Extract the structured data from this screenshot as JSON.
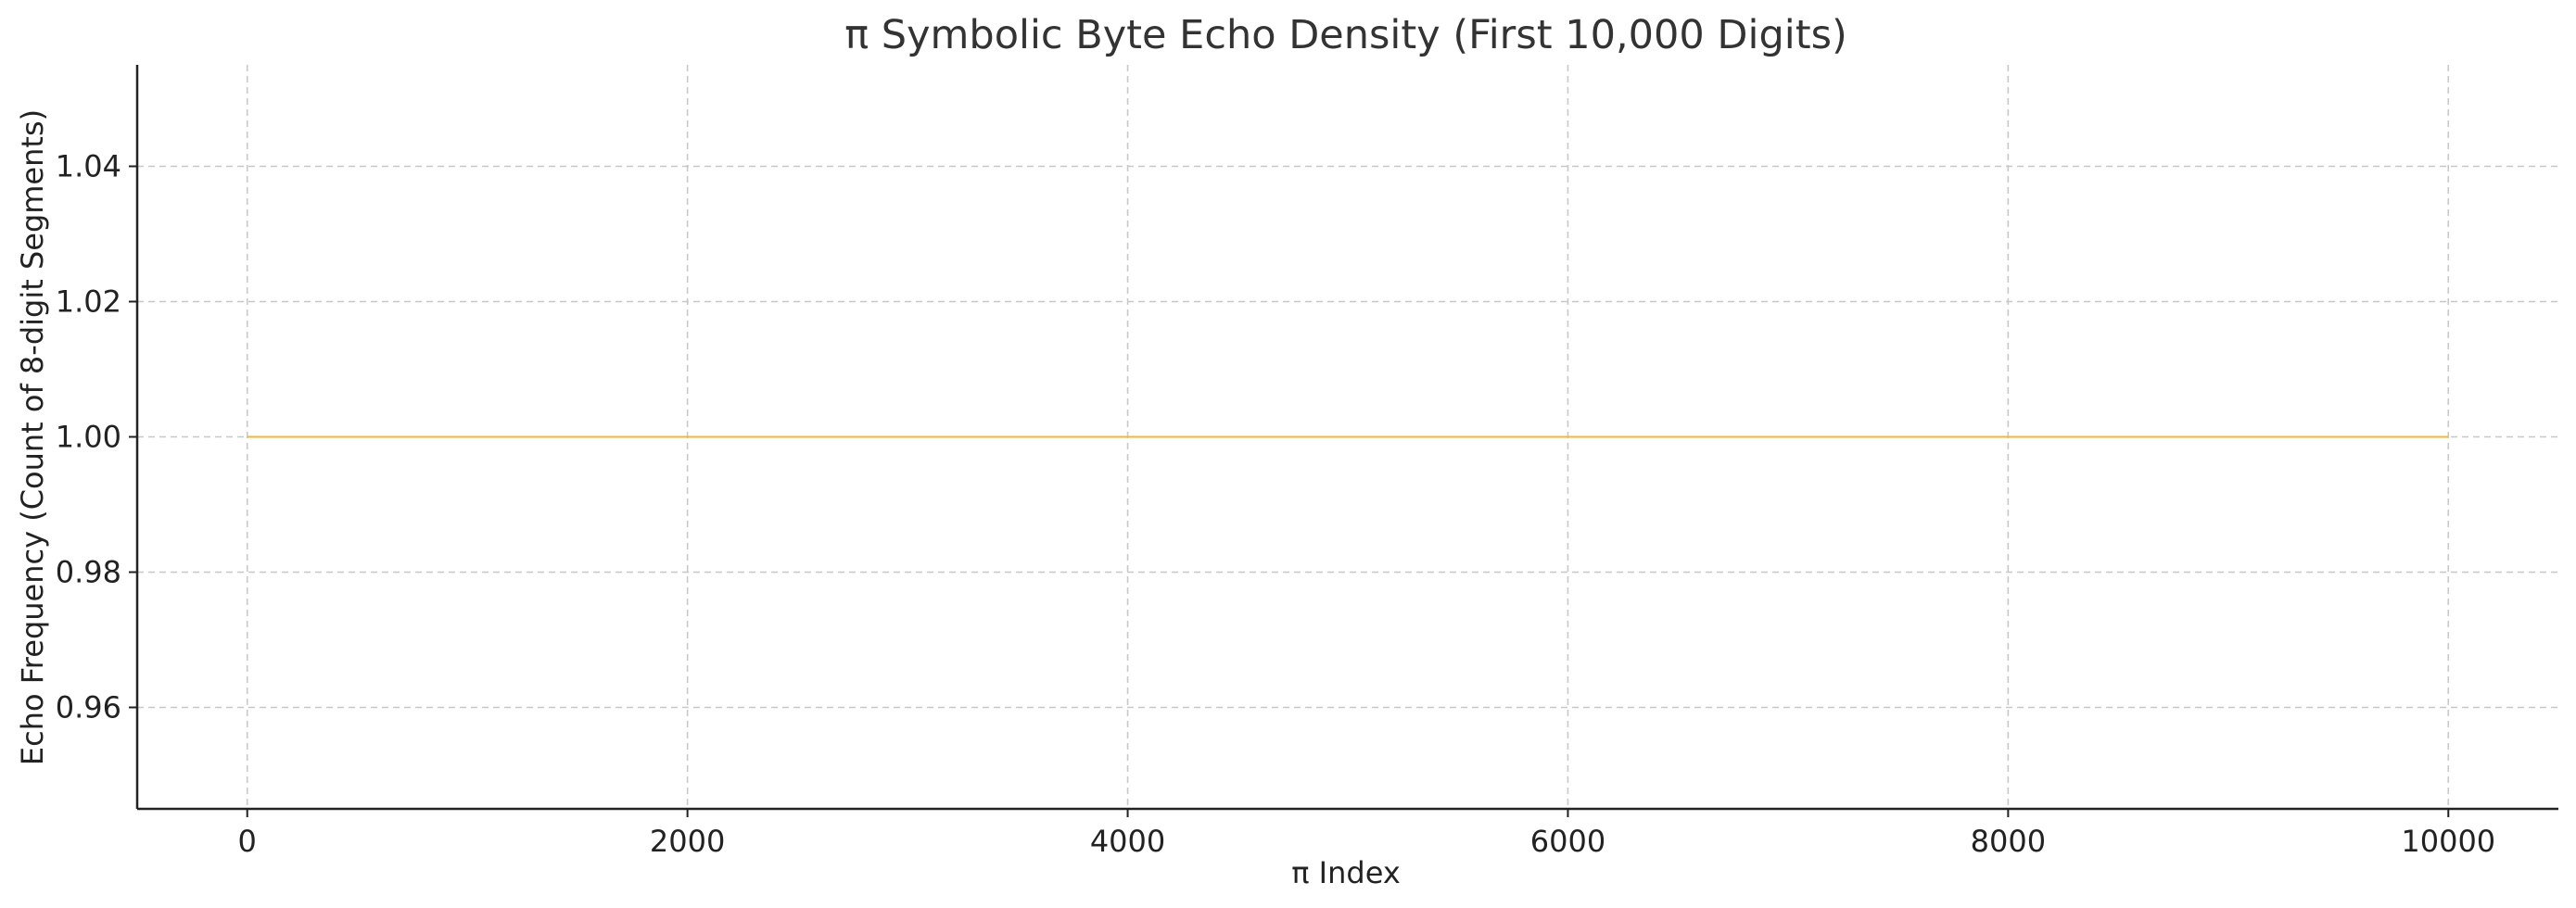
{
  "chart_data": {
    "type": "line",
    "title": "π Symbolic Byte Echo Density (First 10,000 Digits)",
    "xlabel": "π Index",
    "ylabel": "Echo Frequency (Count of 8-digit Segments)",
    "xlim": [
      -500,
      10500
    ],
    "ylim": [
      0.945,
      1.055
    ],
    "x_ticks": [
      0,
      2000,
      4000,
      6000,
      8000,
      10000
    ],
    "x_tick_labels": [
      "0",
      "2000",
      "4000",
      "6000",
      "8000",
      "10000"
    ],
    "y_ticks": [
      0.96,
      0.98,
      1.0,
      1.02,
      1.04
    ],
    "y_tick_labels": [
      "0.96",
      "0.98",
      "1.00",
      "1.02",
      "1.04"
    ],
    "grid": true,
    "series": [
      {
        "color": "#f2b735",
        "x": [
          0,
          10000
        ],
        "y": [
          1.0,
          1.0
        ]
      }
    ]
  }
}
